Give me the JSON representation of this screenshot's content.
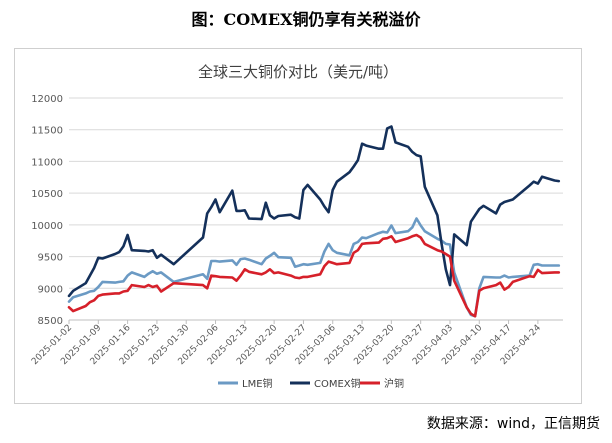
{
  "figure_caption": "图：COMEX铜仍享有关税溢价",
  "source_note": "数据来源：wind，正信期货",
  "chart_data": {
    "type": "line",
    "title": "全球三大铜价对比（美元/吨）",
    "xlabel": "",
    "ylabel": "",
    "ylim": [
      8500,
      12000
    ],
    "yticks": [
      8500,
      9000,
      9500,
      10000,
      10500,
      11000,
      11500,
      12000
    ],
    "xticks": [
      "2025-01-02",
      "2025-01-09",
      "2025-01-16",
      "2025-01-23",
      "2025-01-30",
      "2025-02-06",
      "2025-02-13",
      "2025-02-20",
      "2025-02-27",
      "2025-03-06",
      "2025-03-13",
      "2025-03-20",
      "2025-03-27",
      "2025-04-03",
      "2025-04-10",
      "2025-04-17",
      "2025-04-24"
    ],
    "grid": "horizontal",
    "legend_position": "bottom",
    "series": [
      {
        "name": "LME铜",
        "color": "#6b9ac4",
        "points": [
          [
            "2025-01-02",
            8790
          ],
          [
            "2025-01-03",
            8860
          ],
          [
            "2025-01-06",
            8920
          ],
          [
            "2025-01-07",
            8950
          ],
          [
            "2025-01-08",
            8960
          ],
          [
            "2025-01-09",
            9020
          ],
          [
            "2025-01-10",
            9100
          ],
          [
            "2025-01-13",
            9090
          ],
          [
            "2025-01-14",
            9100
          ],
          [
            "2025-01-15",
            9110
          ],
          [
            "2025-01-16",
            9200
          ],
          [
            "2025-01-17",
            9250
          ],
          [
            "2025-01-20",
            9180
          ],
          [
            "2025-01-21",
            9230
          ],
          [
            "2025-01-22",
            9270
          ],
          [
            "2025-01-23",
            9230
          ],
          [
            "2025-01-24",
            9250
          ],
          [
            "2025-01-27",
            9100
          ],
          [
            "2025-02-03",
            9220
          ],
          [
            "2025-02-04",
            9150
          ],
          [
            "2025-02-05",
            9430
          ],
          [
            "2025-02-06",
            9430
          ],
          [
            "2025-02-07",
            9420
          ],
          [
            "2025-02-10",
            9440
          ],
          [
            "2025-02-11",
            9370
          ],
          [
            "2025-02-12",
            9460
          ],
          [
            "2025-02-13",
            9470
          ],
          [
            "2025-02-14",
            9450
          ],
          [
            "2025-02-17",
            9380
          ],
          [
            "2025-02-18",
            9470
          ],
          [
            "2025-02-19",
            9510
          ],
          [
            "2025-02-20",
            9560
          ],
          [
            "2025-02-21",
            9490
          ],
          [
            "2025-02-24",
            9480
          ],
          [
            "2025-02-25",
            9340
          ],
          [
            "2025-02-26",
            9360
          ],
          [
            "2025-02-27",
            9380
          ],
          [
            "2025-02-28",
            9370
          ],
          [
            "2025-03-03",
            9400
          ],
          [
            "2025-03-04",
            9580
          ],
          [
            "2025-03-05",
            9700
          ],
          [
            "2025-03-06",
            9600
          ],
          [
            "2025-03-07",
            9560
          ],
          [
            "2025-03-10",
            9520
          ],
          [
            "2025-03-11",
            9700
          ],
          [
            "2025-03-12",
            9730
          ],
          [
            "2025-03-13",
            9800
          ],
          [
            "2025-03-14",
            9790
          ],
          [
            "2025-03-17",
            9870
          ],
          [
            "2025-03-18",
            9890
          ],
          [
            "2025-03-19",
            9880
          ],
          [
            "2025-03-20",
            9990
          ],
          [
            "2025-03-21",
            9870
          ],
          [
            "2025-03-24",
            9900
          ],
          [
            "2025-03-25",
            9960
          ],
          [
            "2025-03-26",
            10100
          ],
          [
            "2025-03-27",
            9990
          ],
          [
            "2025-03-28",
            9900
          ],
          [
            "2025-03-31",
            9780
          ],
          [
            "2025-04-01",
            9750
          ],
          [
            "2025-04-02",
            9700
          ],
          [
            "2025-04-03",
            9690
          ],
          [
            "2025-04-04",
            9250
          ],
          [
            "2025-04-07",
            8700
          ],
          [
            "2025-04-08",
            8580
          ],
          [
            "2025-04-09",
            8560
          ],
          [
            "2025-04-10",
            9000
          ],
          [
            "2025-04-11",
            9180
          ],
          [
            "2025-04-14",
            9170
          ],
          [
            "2025-04-15",
            9170
          ],
          [
            "2025-04-16",
            9200
          ],
          [
            "2025-04-17",
            9170
          ],
          [
            "2025-04-18",
            9180
          ],
          [
            "2025-04-22",
            9200
          ],
          [
            "2025-04-23",
            9370
          ],
          [
            "2025-04-24",
            9380
          ],
          [
            "2025-04-25",
            9360
          ],
          [
            "2025-04-28",
            9360
          ],
          [
            "2025-04-29",
            9360
          ]
        ]
      },
      {
        "name": "COMEX铜",
        "color": "#14305a",
        "points": [
          [
            "2025-01-02",
            8880
          ],
          [
            "2025-01-03",
            8960
          ],
          [
            "2025-01-06",
            9080
          ],
          [
            "2025-01-07",
            9200
          ],
          [
            "2025-01-08",
            9320
          ],
          [
            "2025-01-09",
            9480
          ],
          [
            "2025-01-10",
            9470
          ],
          [
            "2025-01-13",
            9540
          ],
          [
            "2025-01-14",
            9570
          ],
          [
            "2025-01-15",
            9660
          ],
          [
            "2025-01-16",
            9840
          ],
          [
            "2025-01-17",
            9600
          ],
          [
            "2025-01-20",
            9590
          ],
          [
            "2025-01-21",
            9580
          ],
          [
            "2025-01-22",
            9600
          ],
          [
            "2025-01-23",
            9480
          ],
          [
            "2025-01-24",
            9530
          ],
          [
            "2025-01-27",
            9380
          ],
          [
            "2025-02-03",
            9800
          ],
          [
            "2025-02-04",
            10180
          ],
          [
            "2025-02-05",
            10280
          ],
          [
            "2025-02-06",
            10400
          ],
          [
            "2025-02-07",
            10200
          ],
          [
            "2025-02-10",
            10540
          ],
          [
            "2025-02-11",
            10220
          ],
          [
            "2025-02-12",
            10220
          ],
          [
            "2025-02-13",
            10230
          ],
          [
            "2025-02-14",
            10100
          ],
          [
            "2025-02-17",
            10090
          ],
          [
            "2025-02-18",
            10350
          ],
          [
            "2025-02-19",
            10150
          ],
          [
            "2025-02-20",
            10100
          ],
          [
            "2025-02-21",
            10140
          ],
          [
            "2025-02-24",
            10160
          ],
          [
            "2025-02-25",
            10120
          ],
          [
            "2025-02-26",
            10100
          ],
          [
            "2025-02-27",
            10550
          ],
          [
            "2025-02-28",
            10630
          ],
          [
            "2025-03-03",
            10400
          ],
          [
            "2025-03-04",
            10290
          ],
          [
            "2025-03-05",
            10200
          ],
          [
            "2025-03-06",
            10550
          ],
          [
            "2025-03-07",
            10680
          ],
          [
            "2025-03-10",
            10830
          ],
          [
            "2025-03-11",
            10920
          ],
          [
            "2025-03-12",
            11020
          ],
          [
            "2025-03-13",
            11280
          ],
          [
            "2025-03-14",
            11250
          ],
          [
            "2025-03-17",
            11200
          ],
          [
            "2025-03-18",
            11200
          ],
          [
            "2025-03-19",
            11520
          ],
          [
            "2025-03-20",
            11550
          ],
          [
            "2025-03-21",
            11300
          ],
          [
            "2025-03-24",
            11230
          ],
          [
            "2025-03-25",
            11150
          ],
          [
            "2025-03-26",
            11100
          ],
          [
            "2025-03-27",
            11080
          ],
          [
            "2025-03-28",
            10600
          ],
          [
            "2025-03-31",
            10150
          ],
          [
            "2025-04-01",
            9700
          ],
          [
            "2025-04-02",
            9300
          ],
          [
            "2025-04-03",
            9050
          ],
          [
            "2025-04-04",
            9850
          ],
          [
            "2025-04-07",
            9680
          ],
          [
            "2025-04-08",
            10050
          ],
          [
            "2025-04-09",
            10150
          ],
          [
            "2025-04-10",
            10250
          ],
          [
            "2025-04-11",
            10300
          ],
          [
            "2025-04-14",
            10180
          ],
          [
            "2025-04-15",
            10320
          ],
          [
            "2025-04-16",
            10360
          ],
          [
            "2025-04-17",
            10380
          ],
          [
            "2025-04-18",
            10400
          ],
          [
            "2025-04-22",
            10620
          ],
          [
            "2025-04-23",
            10680
          ],
          [
            "2025-04-24",
            10650
          ],
          [
            "2025-04-25",
            10760
          ],
          [
            "2025-04-28",
            10700
          ],
          [
            "2025-04-29",
            10690
          ]
        ]
      },
      {
        "name": "沪铜",
        "color": "#d6202a",
        "points": [
          [
            "2025-01-02",
            8700
          ],
          [
            "2025-01-03",
            8640
          ],
          [
            "2025-01-06",
            8720
          ],
          [
            "2025-01-07",
            8780
          ],
          [
            "2025-01-08",
            8810
          ],
          [
            "2025-01-09",
            8880
          ],
          [
            "2025-01-10",
            8900
          ],
          [
            "2025-01-13",
            8920
          ],
          [
            "2025-01-14",
            8920
          ],
          [
            "2025-01-15",
            8950
          ],
          [
            "2025-01-16",
            8960
          ],
          [
            "2025-01-17",
            9050
          ],
          [
            "2025-01-20",
            9020
          ],
          [
            "2025-01-21",
            9050
          ],
          [
            "2025-01-22",
            9020
          ],
          [
            "2025-01-23",
            9040
          ],
          [
            "2025-01-24",
            8950
          ],
          [
            "2025-01-27",
            9080
          ],
          [
            "2025-02-03",
            9050
          ],
          [
            "2025-02-04",
            9000
          ],
          [
            "2025-02-05",
            9200
          ],
          [
            "2025-02-06",
            9190
          ],
          [
            "2025-02-07",
            9180
          ],
          [
            "2025-02-10",
            9170
          ],
          [
            "2025-02-11",
            9120
          ],
          [
            "2025-02-12",
            9200
          ],
          [
            "2025-02-13",
            9300
          ],
          [
            "2025-02-14",
            9260
          ],
          [
            "2025-02-17",
            9220
          ],
          [
            "2025-02-18",
            9250
          ],
          [
            "2025-02-19",
            9300
          ],
          [
            "2025-02-20",
            9240
          ],
          [
            "2025-02-21",
            9250
          ],
          [
            "2025-02-24",
            9200
          ],
          [
            "2025-02-25",
            9170
          ],
          [
            "2025-02-26",
            9160
          ],
          [
            "2025-02-27",
            9180
          ],
          [
            "2025-02-28",
            9180
          ],
          [
            "2025-03-03",
            9220
          ],
          [
            "2025-03-04",
            9350
          ],
          [
            "2025-03-05",
            9420
          ],
          [
            "2025-03-06",
            9400
          ],
          [
            "2025-03-07",
            9380
          ],
          [
            "2025-03-10",
            9400
          ],
          [
            "2025-03-11",
            9560
          ],
          [
            "2025-03-12",
            9600
          ],
          [
            "2025-03-13",
            9700
          ],
          [
            "2025-03-14",
            9710
          ],
          [
            "2025-03-17",
            9720
          ],
          [
            "2025-03-18",
            9780
          ],
          [
            "2025-03-19",
            9790
          ],
          [
            "2025-03-20",
            9820
          ],
          [
            "2025-03-21",
            9730
          ],
          [
            "2025-03-24",
            9790
          ],
          [
            "2025-03-25",
            9820
          ],
          [
            "2025-03-26",
            9840
          ],
          [
            "2025-03-27",
            9800
          ],
          [
            "2025-03-28",
            9700
          ],
          [
            "2025-03-31",
            9600
          ],
          [
            "2025-04-01",
            9580
          ],
          [
            "2025-04-02",
            9540
          ],
          [
            "2025-04-03",
            9500
          ],
          [
            "2025-04-04",
            9120
          ],
          [
            "2025-04-07",
            8700
          ],
          [
            "2025-04-08",
            8600
          ],
          [
            "2025-04-09",
            8560
          ],
          [
            "2025-04-10",
            8960
          ],
          [
            "2025-04-11",
            9000
          ],
          [
            "2025-04-14",
            9050
          ],
          [
            "2025-04-15",
            9090
          ],
          [
            "2025-04-16",
            8980
          ],
          [
            "2025-04-17",
            9020
          ],
          [
            "2025-04-18",
            9100
          ],
          [
            "2025-04-22",
            9190
          ],
          [
            "2025-04-23",
            9180
          ],
          [
            "2025-04-24",
            9290
          ],
          [
            "2025-04-25",
            9240
          ],
          [
            "2025-04-28",
            9250
          ],
          [
            "2025-04-29",
            9250
          ]
        ]
      }
    ]
  }
}
